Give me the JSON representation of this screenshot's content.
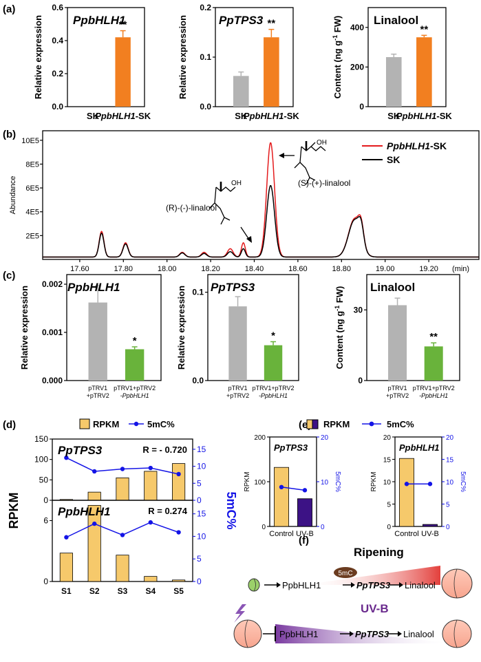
{
  "colors": {
    "sk": "#b3b3b3",
    "oe": "#f27f20",
    "vigs": "#69b33b",
    "red": "#e41a1c",
    "black": "#000000",
    "rpkm": "#f6c96b",
    "mc": "#1414e6",
    "uvb": "#3c1285",
    "purple": "#6a2a8d",
    "mcbadge": "#6b3c20",
    "leaf": "#8cc85a"
  },
  "panel_labels": {
    "a": "(a)",
    "b": "(b)",
    "c": "(c)",
    "d": "(d)",
    "e": "(e)",
    "f": "(f)"
  },
  "chart_data": [
    {
      "id": "a1",
      "type": "bar",
      "title": "PpbHLH1",
      "categories": [
        "SK",
        "PpbHLH1-SK"
      ],
      "cat_parts": [
        [
          "SK",
          ""
        ],
        [
          "PpbHLH1",
          "-SK"
        ]
      ],
      "values": [
        0,
        0.42
      ],
      "errors": [
        0,
        0.04
      ],
      "ylim": [
        0,
        0.6
      ],
      "yticks": [
        "0.0",
        "0.2",
        "0.4",
        "0.6"
      ],
      "ylabel": "Relative expression",
      "sig": [
        "",
        "**"
      ]
    },
    {
      "id": "a2",
      "type": "bar",
      "title": "PpTPS3",
      "categories": [
        "SK",
        "PpbHLH1-SK"
      ],
      "cat_parts": [
        [
          "SK",
          ""
        ],
        [
          "PpbHLH1",
          "-SK"
        ]
      ],
      "values": [
        0.062,
        0.14
      ],
      "errors": [
        0.008,
        0.016
      ],
      "ylim": [
        0,
        0.2
      ],
      "yticks": [
        "0.0",
        "0.1",
        "0.2"
      ],
      "ylabel": "Relative expression",
      "sig": [
        "",
        "**"
      ]
    },
    {
      "id": "a3",
      "type": "bar",
      "title": "Linalool",
      "categories": [
        "SK",
        "PpbHLH1-SK"
      ],
      "cat_parts": [
        [
          "SK",
          ""
        ],
        [
          "PpbHLH1",
          "-SK"
        ]
      ],
      "values": [
        250,
        350
      ],
      "errors": [
        15,
        10
      ],
      "ylim": [
        0,
        500
      ],
      "yticks": [
        "0",
        "200",
        "400"
      ],
      "ylabel": "Content (ng g-1 FW)",
      "ylabel_parts": [
        "Content (ng g",
        "-1",
        " FW)"
      ],
      "sig": [
        "",
        "**"
      ]
    },
    {
      "id": "b",
      "type": "line",
      "xlabel": "(min)",
      "ylabel": "Abundance",
      "xlim": [
        17.43,
        19.43
      ],
      "ylim": [
        0,
        1080000
      ],
      "xticks": [
        "17.60",
        "17.80",
        "18.00",
        "18.20",
        "18.40",
        "18.60",
        "18.80",
        "19.00",
        "19.20"
      ],
      "yticks": [
        "2E5",
        "4E5",
        "6E5",
        "8E5",
        "10E5"
      ],
      "legend": [
        "PpbHLH1-SK",
        "SK"
      ],
      "legend_parts": [
        [
          "PpbHLH1",
          "-SK"
        ],
        [
          "SK",
          ""
        ]
      ],
      "annotations": [
        "(R)-(-)-linalool",
        "(S)-(+)-linalool"
      ],
      "peaks": [
        {
          "t": 17.7,
          "w": 0.011,
          "sk": 200000,
          "oe": 215000
        },
        {
          "t": 17.81,
          "w": 0.012,
          "sk": 110000,
          "oe": 120000
        },
        {
          "t": 18.07,
          "w": 0.012,
          "sk": 35000,
          "oe": 40000
        },
        {
          "t": 18.17,
          "w": 0.012,
          "sk": 30000,
          "oe": 40000
        },
        {
          "t": 18.29,
          "w": 0.013,
          "sk": 45000,
          "oe": 70000
        },
        {
          "t": 18.35,
          "w": 0.009,
          "sk": 70000,
          "oe": 120000
        },
        {
          "t": 18.475,
          "w": 0.018,
          "sk": 600000,
          "oe": 960000
        },
        {
          "t": 18.86,
          "w": 0.028,
          "sk": 310000,
          "oe": 320000
        },
        {
          "t": 18.89,
          "w": 0.012,
          "sk": 140000,
          "oe": 150000
        }
      ],
      "baseline": 20000
    },
    {
      "id": "c1",
      "type": "bar",
      "title": "PpbHLH1",
      "categories": [
        "pTRV1+pTRV2",
        "pTRV1+pTRV2-PpbHLH1"
      ],
      "cat_lines": [
        [
          "pTRV1",
          "+pTRV2"
        ],
        [
          "pTRV1+pTRV2",
          "-PpbHLH1"
        ]
      ],
      "values": [
        0.00162,
        0.00065
      ],
      "errors": [
        0.00035,
        5e-05
      ],
      "ylim": [
        0,
        0.0022
      ],
      "yticks": [
        "0.000",
        "0.001",
        "0.002"
      ],
      "ylabel": "Relative expression",
      "sig": [
        "",
        "*"
      ]
    },
    {
      "id": "c2",
      "type": "bar",
      "title": "PpTPS3",
      "categories": [
        "pTRV1+pTRV2",
        "pTRV1+pTRV2-PpbHLH1"
      ],
      "cat_lines": [
        [
          "pTRV1",
          "+pTRV2"
        ],
        [
          "pTRV1+pTRV2",
          "-PpbHLH1"
        ]
      ],
      "values": [
        0.084,
        0.04
      ],
      "errors": [
        0.011,
        0.004
      ],
      "ylim": [
        0,
        0.12
      ],
      "yticks": [
        "0.0",
        "0.1"
      ],
      "ylabel": "Relative expression",
      "sig": [
        "",
        "*"
      ]
    },
    {
      "id": "c3",
      "type": "bar",
      "title": "Linalool",
      "categories": [
        "pTRV1+pTRV2",
        "pTRV1+pTRV2-PpbHLH1"
      ],
      "cat_lines": [
        [
          "pTRV1",
          "+pTRV2"
        ],
        [
          "pTRV1+pTRV2",
          "-PpbHLH1"
        ]
      ],
      "values": [
        32,
        14.5
      ],
      "errors": [
        3,
        1.5
      ],
      "ylim": [
        0,
        45
      ],
      "yticks": [
        "0",
        "30"
      ],
      "ylabel": "Content (ng g-1 FW)",
      "ylabel_parts": [
        "Content (ng g",
        "-1",
        " FW)"
      ],
      "sig": [
        "",
        "**"
      ]
    },
    {
      "id": "d",
      "type": "bar+line",
      "legend": [
        "RPKM",
        "5mC%"
      ],
      "categories": [
        "S1",
        "S2",
        "S3",
        "S4",
        "S5"
      ],
      "ylabel": "RPKM",
      "y2label": "5mC%",
      "subplots": [
        {
          "gene": "PpTPS3",
          "r": "R = - 0.720",
          "rpkm": [
            2,
            20,
            55,
            71,
            90
          ],
          "mc": [
            12.5,
            8.5,
            9.2,
            9.5,
            7.7
          ],
          "ylim": [
            0,
            150
          ],
          "yticks": [
            "0",
            "50",
            "100",
            "150"
          ],
          "y2lim": [
            0,
            18
          ],
          "y2ticks": [
            "0",
            "5",
            "10",
            "15"
          ]
        },
        {
          "gene": "PpbHLH1",
          "r": "R = 0.274",
          "rpkm": [
            2.8,
            7.5,
            2.6,
            0.5,
            0.15
          ],
          "mc": [
            9.8,
            12.8,
            10.3,
            13.1,
            10.9
          ],
          "ylim": [
            0,
            8
          ],
          "yticks": [
            "0",
            "6"
          ],
          "y2lim": [
            0,
            18
          ],
          "y2ticks": [
            "0",
            "5",
            "10",
            "15"
          ]
        }
      ]
    },
    {
      "id": "e",
      "type": "bar+line",
      "legend": [
        "RPKM",
        "5mC%"
      ],
      "categories": [
        "Control",
        "UV-B"
      ],
      "ylabel": "RPKM",
      "y2label": "5mC%",
      "subplots": [
        {
          "gene": "PpTPS3",
          "rpkm": [
            132,
            62
          ],
          "mc": [
            8.8,
            8.1
          ],
          "ylim": [
            0,
            200
          ],
          "yticks": [
            "0",
            "100",
            "200"
          ],
          "y2lim": [
            0,
            20
          ],
          "y2ticks": [
            "0",
            "10",
            "20"
          ]
        },
        {
          "gene": "PpbHLH1",
          "rpkm": [
            15.2,
            0.45
          ],
          "mc": [
            9.5,
            9.5
          ],
          "ylim": [
            0,
            20
          ],
          "yticks": [
            "0",
            "5",
            "10",
            "15",
            "20"
          ],
          "y2lim": [
            0,
            20
          ],
          "y2ticks": [
            "0",
            "5",
            "10",
            "15",
            "20"
          ]
        }
      ]
    }
  ],
  "diagram_f": {
    "ripening": "Ripening",
    "uvb": "UV-B",
    "mc": "5mC",
    "gene1": "PpbHLH1",
    "gene2": "PpTPS3",
    "product": "Linalool"
  }
}
